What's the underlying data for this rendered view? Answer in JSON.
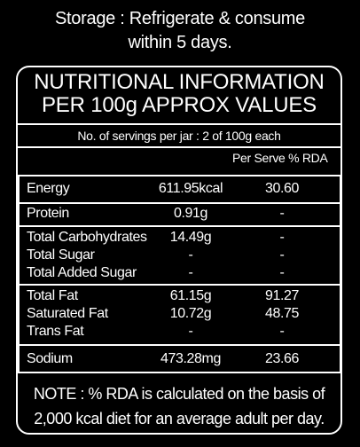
{
  "storage": {
    "line1": "Storage : Refrigerate & consume",
    "line2": "within 5 days."
  },
  "title": {
    "line1": "NUTRITIONAL INFORMATION",
    "line2": "PER 100g APPROX VALUES"
  },
  "servings": "No. of servings per jar : 2 of 100g each",
  "column_header": "Per Serve % RDA",
  "rows": [
    {
      "label": "Energy",
      "per100g": "611.95kcal",
      "rda": "30.60"
    },
    {
      "label": "Protein",
      "per100g": "0.91g",
      "rda": "-"
    },
    {
      "label": "Total Carbohydrates",
      "per100g": "14.49g",
      "rda": "-"
    },
    {
      "label": "Total Sugar",
      "per100g": "-",
      "rda": "-"
    },
    {
      "label": "Total Added Sugar",
      "per100g": "-",
      "rda": "-"
    },
    {
      "label": "Total Fat",
      "per100g": "61.15g",
      "rda": "91.27"
    },
    {
      "label": "Saturated Fat",
      "per100g": "10.72g",
      "rda": "48.75"
    },
    {
      "label": "Trans Fat",
      "per100g": "-",
      "rda": "-"
    },
    {
      "label": "Sodium",
      "per100g": "473.28mg",
      "rda": "23.66"
    }
  ],
  "note": {
    "line1": "NOTE : % RDA is calculated on the basis of",
    "line2": "2,000 kcal diet for an average adult per day."
  }
}
